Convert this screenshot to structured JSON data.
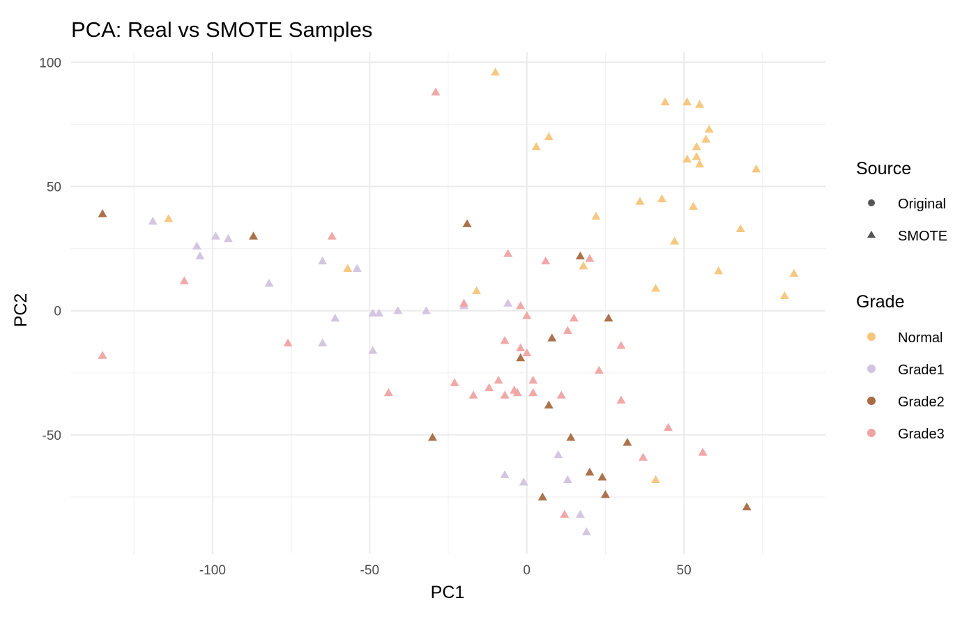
{
  "chart_data": {
    "type": "scatter",
    "title": "PCA: Real vs SMOTE Samples",
    "xlabel": "PC1",
    "ylabel": "PC2",
    "xlim": [
      -145,
      95
    ],
    "ylim": [
      -98,
      104
    ],
    "xticks": [
      -100,
      -50,
      0,
      50
    ],
    "yticks": [
      -50,
      0,
      50,
      100
    ],
    "grid": true,
    "legend_position": "right",
    "legends": [
      {
        "title": "Source",
        "entries": [
          {
            "label": "Original",
            "shape": "circle",
            "color": "#555555"
          },
          {
            "label": "SMOTE",
            "shape": "triangle",
            "color": "#555555"
          }
        ]
      },
      {
        "title": "Grade",
        "entries": [
          {
            "label": "Normal",
            "shape": "circle",
            "color": "#F5C57A"
          },
          {
            "label": "Grade1",
            "shape": "circle",
            "color": "#D2C3E0"
          },
          {
            "label": "Grade2",
            "shape": "circle",
            "color": "#A86A42"
          },
          {
            "label": "Grade3",
            "shape": "circle",
            "color": "#F0A3A3"
          }
        ]
      }
    ],
    "series": [
      {
        "name": "Normal",
        "color": "#F5C57A",
        "shape": "triangle",
        "points": [
          [
            -10,
            96
          ],
          [
            44,
            84
          ],
          [
            51,
            84
          ],
          [
            55,
            83
          ],
          [
            3,
            66
          ],
          [
            7,
            70
          ],
          [
            58,
            73
          ],
          [
            57,
            69
          ],
          [
            54,
            66
          ],
          [
            54,
            62
          ],
          [
            51,
            61
          ],
          [
            55,
            59
          ],
          [
            73,
            57
          ],
          [
            -114,
            37
          ],
          [
            36,
            44
          ],
          [
            43,
            45
          ],
          [
            53,
            42
          ],
          [
            22,
            38
          ],
          [
            68,
            33
          ],
          [
            47,
            28
          ],
          [
            -57,
            17
          ],
          [
            18,
            18
          ],
          [
            61,
            16
          ],
          [
            85,
            15
          ],
          [
            -16,
            8
          ],
          [
            41,
            9
          ],
          [
            82,
            6
          ],
          [
            41,
            -68
          ]
        ]
      },
      {
        "name": "Grade1",
        "color": "#D2C3E0",
        "shape": "triangle",
        "points": [
          [
            -119,
            36
          ],
          [
            -99,
            30
          ],
          [
            -95,
            29
          ],
          [
            -105,
            26
          ],
          [
            -104,
            22
          ],
          [
            -65,
            20
          ],
          [
            -54,
            17
          ],
          [
            -82,
            11
          ],
          [
            -61,
            -3
          ],
          [
            -49,
            -1
          ],
          [
            -47,
            -1
          ],
          [
            -41,
            0
          ],
          [
            -32,
            0
          ],
          [
            -20,
            2
          ],
          [
            -6,
            3
          ],
          [
            -65,
            -13
          ],
          [
            -49,
            -16
          ],
          [
            10,
            -58
          ],
          [
            -7,
            -66
          ],
          [
            -1,
            -69
          ],
          [
            13,
            -68
          ],
          [
            17,
            -82
          ],
          [
            19,
            -89
          ]
        ]
      },
      {
        "name": "Grade2",
        "color": "#A86A42",
        "shape": "triangle",
        "points": [
          [
            -135,
            39
          ],
          [
            -87,
            30
          ],
          [
            -19,
            35
          ],
          [
            17,
            22
          ],
          [
            26,
            -3
          ],
          [
            8,
            -11
          ],
          [
            -2,
            -19
          ],
          [
            7,
            -38
          ],
          [
            -30,
            -51
          ],
          [
            14,
            -51
          ],
          [
            32,
            -53
          ],
          [
            20,
            -65
          ],
          [
            24,
            -67
          ],
          [
            25,
            -74
          ],
          [
            5,
            -75
          ],
          [
            70,
            -79
          ]
        ]
      },
      {
        "name": "Grade3",
        "color": "#F0A3A3",
        "shape": "triangle",
        "points": [
          [
            -29,
            88
          ],
          [
            -62,
            30
          ],
          [
            -6,
            23
          ],
          [
            6,
            20
          ],
          [
            20,
            21
          ],
          [
            -109,
            12
          ],
          [
            -20,
            3
          ],
          [
            -2,
            2
          ],
          [
            0,
            -2
          ],
          [
            15,
            -3
          ],
          [
            -76,
            -13
          ],
          [
            -7,
            -12
          ],
          [
            13,
            -8
          ],
          [
            30,
            -14
          ],
          [
            -2,
            -15
          ],
          [
            0,
            -17
          ],
          [
            23,
            -24
          ],
          [
            -135,
            -18
          ],
          [
            -23,
            -29
          ],
          [
            -9,
            -28
          ],
          [
            2,
            -28
          ],
          [
            -12,
            -31
          ],
          [
            -4,
            -32
          ],
          [
            -3,
            -33
          ],
          [
            -44,
            -33
          ],
          [
            -17,
            -34
          ],
          [
            -7,
            -34
          ],
          [
            2,
            -33
          ],
          [
            11,
            -34
          ],
          [
            30,
            -36
          ],
          [
            45,
            -47
          ],
          [
            56,
            -57
          ],
          [
            37,
            -59
          ],
          [
            12,
            -82
          ]
        ]
      }
    ]
  }
}
